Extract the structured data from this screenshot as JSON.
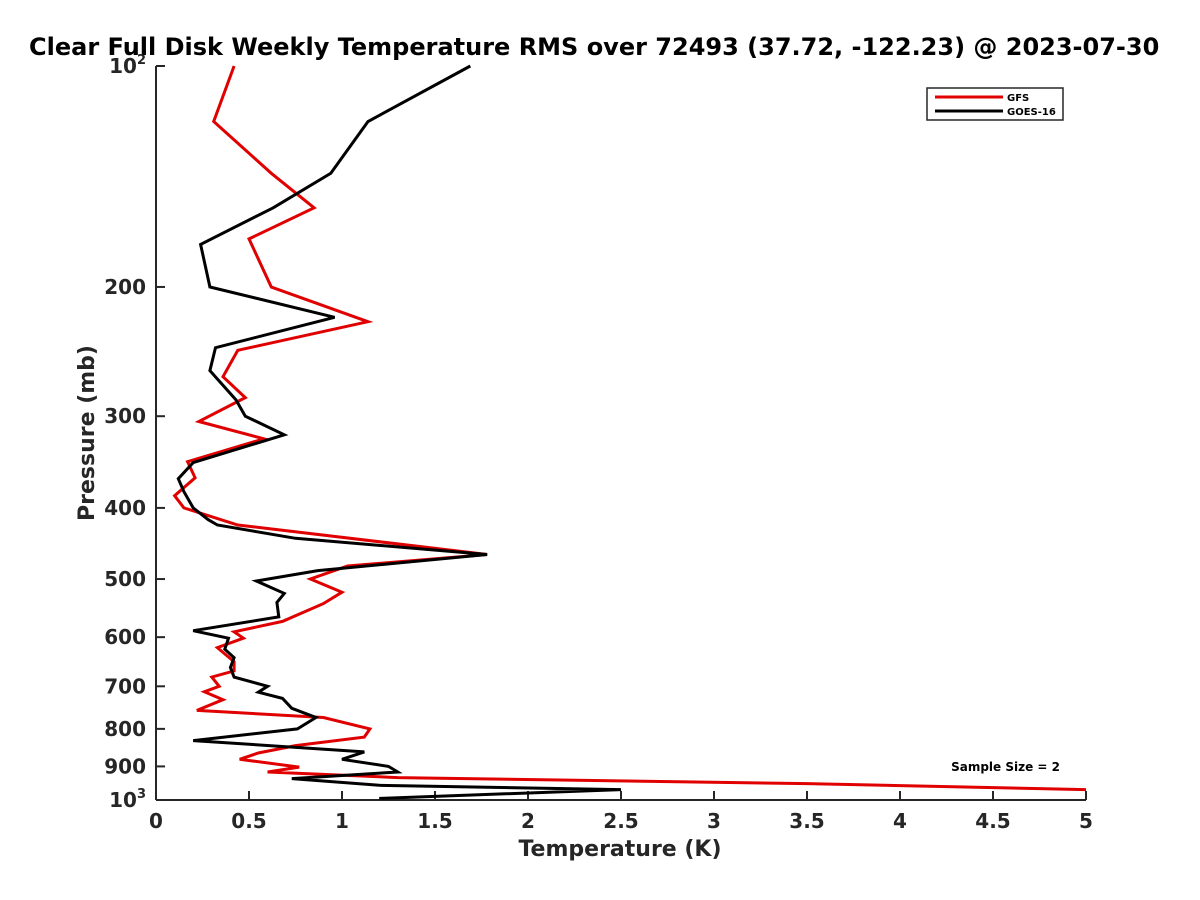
{
  "chart_data": {
    "type": "line",
    "title": "Clear Full Disk Weekly Temperature RMS over 72493 (37.72, -122.23) @ 2023-07-30",
    "xlabel": "Temperature (K)",
    "ylabel": "Pressure (mb)",
    "xlim": [
      0,
      5
    ],
    "ylim": [
      100,
      1000
    ],
    "y_scale": "log",
    "y_reversed": true,
    "x_ticks": [
      "0",
      "0.5",
      "1",
      "1.5",
      "2",
      "2.5",
      "3",
      "3.5",
      "4",
      "4.5",
      "5"
    ],
    "x_tick_values": [
      0,
      0.5,
      1,
      1.5,
      2,
      2.5,
      3,
      3.5,
      4,
      4.5,
      5
    ],
    "y_ticks": [
      {
        "value": 100,
        "base": "10",
        "exp": "2"
      },
      {
        "value": 200,
        "label": "200"
      },
      {
        "value": 300,
        "label": "300"
      },
      {
        "value": 400,
        "label": "400"
      },
      {
        "value": 500,
        "label": "500"
      },
      {
        "value": 600,
        "label": "600"
      },
      {
        "value": 700,
        "label": "700"
      },
      {
        "value": 800,
        "label": "800"
      },
      {
        "value": 900,
        "label": "900"
      },
      {
        "value": 1000,
        "base": "10",
        "exp": "3"
      }
    ],
    "grid": false,
    "legend_position": "top-right",
    "annotation": "Sample Size = 2",
    "series": [
      {
        "name": "GFS",
        "color": "#e00000",
        "points": [
          [
            0.42,
            100
          ],
          [
            0.31,
            119
          ],
          [
            0.62,
            140
          ],
          [
            0.85,
            156
          ],
          [
            0.5,
            172
          ],
          [
            0.62,
            200
          ],
          [
            1.14,
            223
          ],
          [
            0.44,
            244
          ],
          [
            0.36,
            265
          ],
          [
            0.48,
            283
          ],
          [
            0.23,
            305
          ],
          [
            0.58,
            322
          ],
          [
            0.17,
            346
          ],
          [
            0.21,
            364
          ],
          [
            0.1,
            385
          ],
          [
            0.15,
            400
          ],
          [
            0.44,
            422
          ],
          [
            1.78,
            463
          ],
          [
            1.03,
            480
          ],
          [
            0.83,
            500
          ],
          [
            1.0,
            521
          ],
          [
            0.9,
            540
          ],
          [
            0.68,
            571
          ],
          [
            0.42,
            590
          ],
          [
            0.47,
            602
          ],
          [
            0.33,
            620
          ],
          [
            0.42,
            648
          ],
          [
            0.42,
            667
          ],
          [
            0.3,
            680
          ],
          [
            0.34,
            700
          ],
          [
            0.26,
            712
          ],
          [
            0.36,
            730
          ],
          [
            0.22,
            755
          ],
          [
            0.9,
            772
          ],
          [
            1.15,
            800
          ],
          [
            1.12,
            821
          ],
          [
            0.75,
            843
          ],
          [
            0.55,
            863
          ],
          [
            0.45,
            880
          ],
          [
            0.77,
            902
          ],
          [
            0.6,
            916
          ],
          [
            1.3,
            932
          ],
          [
            3.5,
            950
          ],
          [
            5.0,
            968
          ]
        ]
      },
      {
        "name": "GOES-16",
        "color": "#000000",
        "points": [
          [
            1.69,
            100
          ],
          [
            1.14,
            119
          ],
          [
            0.94,
            140
          ],
          [
            0.63,
            156
          ],
          [
            0.24,
            175
          ],
          [
            0.29,
            200
          ],
          [
            0.96,
            220
          ],
          [
            0.32,
            242
          ],
          [
            0.29,
            260
          ],
          [
            0.43,
            285
          ],
          [
            0.48,
            300
          ],
          [
            0.69,
            318
          ],
          [
            0.2,
            347
          ],
          [
            0.12,
            365
          ],
          [
            0.15,
            380
          ],
          [
            0.2,
            400
          ],
          [
            0.28,
            415
          ],
          [
            0.33,
            422
          ],
          [
            0.75,
            440
          ],
          [
            1.78,
            463
          ],
          [
            0.87,
            487
          ],
          [
            0.54,
            503
          ],
          [
            0.69,
            523
          ],
          [
            0.65,
            538
          ],
          [
            0.66,
            563
          ],
          [
            0.2,
            588
          ],
          [
            0.39,
            602
          ],
          [
            0.37,
            623
          ],
          [
            0.42,
            640
          ],
          [
            0.4,
            660
          ],
          [
            0.42,
            680
          ],
          [
            0.6,
            700
          ],
          [
            0.55,
            713
          ],
          [
            0.68,
            727
          ],
          [
            0.73,
            750
          ],
          [
            0.86,
            772
          ],
          [
            0.76,
            800
          ],
          [
            0.2,
            830
          ],
          [
            1.12,
            860
          ],
          [
            1.0,
            880
          ],
          [
            1.25,
            900
          ],
          [
            1.3,
            916
          ],
          [
            0.73,
            935
          ],
          [
            1.2,
            955
          ],
          [
            2.5,
            968
          ],
          [
            1.2,
            995
          ]
        ]
      }
    ]
  }
}
